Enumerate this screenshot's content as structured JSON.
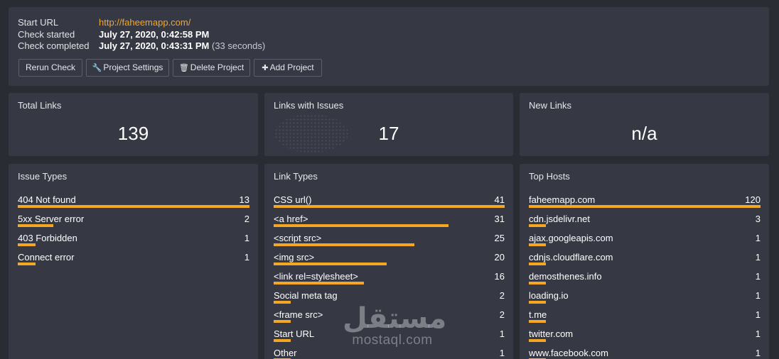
{
  "check": {
    "start_url_label": "Start URL",
    "start_url": "http://faheemapp.com/",
    "check_started_label": "Check started",
    "check_started": "July 27, 2020, 0:42:58 PM",
    "check_completed_label": "Check completed",
    "check_completed": "July 27, 2020, 0:43:31 PM",
    "duration": "(33 seconds)"
  },
  "buttons": {
    "rerun": "Rerun Check",
    "settings": "Project Settings",
    "delete": "Delete Project",
    "add": "Add Project"
  },
  "stats": {
    "total_links": {
      "title": "Total Links",
      "value": "139"
    },
    "issues": {
      "title": "Links with Issues",
      "value": "17"
    },
    "new_links": {
      "title": "New Links",
      "value": "n/a"
    }
  },
  "issue_types": {
    "title": "Issue Types",
    "max": 13,
    "items": [
      {
        "name": "404 Not found",
        "count": 13
      },
      {
        "name": "5xx Server error",
        "count": 2
      },
      {
        "name": "403 Forbidden",
        "count": 1
      },
      {
        "name": "Connect error",
        "count": 1
      }
    ]
  },
  "link_types": {
    "title": "Link Types",
    "max": 41,
    "items": [
      {
        "name": "CSS url()",
        "count": 41
      },
      {
        "name": "<a href>",
        "count": 31
      },
      {
        "name": "<script src>",
        "count": 25
      },
      {
        "name": "<img src>",
        "count": 20
      },
      {
        "name": "<link rel=stylesheet>",
        "count": 16
      },
      {
        "name": "Social meta tag",
        "count": 2
      },
      {
        "name": "<frame src>",
        "count": 2
      },
      {
        "name": "Start URL",
        "count": 1
      },
      {
        "name": "Other",
        "count": 1
      }
    ]
  },
  "top_hosts": {
    "title": "Top Hosts",
    "max": 120,
    "items": [
      {
        "name": "faheemapp.com",
        "count": 120
      },
      {
        "name": "cdn.jsdelivr.net",
        "count": 3
      },
      {
        "name": "ajax.googleapis.com",
        "count": 1
      },
      {
        "name": "cdnjs.cloudflare.com",
        "count": 1
      },
      {
        "name": "demosthenes.info",
        "count": 1
      },
      {
        "name": "loading.io",
        "count": 1
      },
      {
        "name": "t.me",
        "count": 1
      },
      {
        "name": "twitter.com",
        "count": 1
      },
      {
        "name": "www.facebook.com",
        "count": 1
      }
    ]
  },
  "watermark": {
    "arabic": "مستقل",
    "latin": "mostaql.com"
  },
  "colors": {
    "accent": "#f5a623",
    "panel": "#363944",
    "background": "#2a2c34"
  }
}
